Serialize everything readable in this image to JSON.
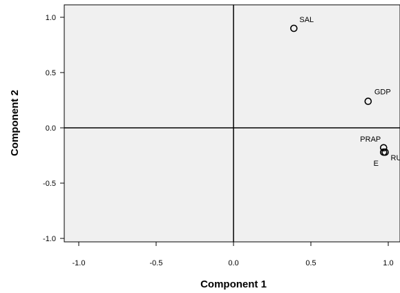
{
  "chart_data": {
    "type": "scatter",
    "title": "",
    "xlabel": "Component 1",
    "ylabel": "Component 2",
    "xlim": [
      -1.1,
      1.1
    ],
    "ylim": [
      -1.1,
      1.1
    ],
    "xticks": [
      -1.0,
      -0.5,
      0.0,
      0.5,
      1.0
    ],
    "xtick_labels": [
      "-1.0",
      "-0.5",
      "0.0",
      "0.5",
      "1.0"
    ],
    "yticks": [
      1.0,
      0.5,
      0.0,
      -0.5,
      -1.0
    ],
    "ytick_labels": [
      "1.0",
      "0.5",
      "0.0",
      "-0.5",
      "-1.0"
    ],
    "reference_lines": {
      "x": 0,
      "y": 0
    },
    "grid": false,
    "colors": {
      "plot_background": "#f0f0f0",
      "marker_stroke": "#000000",
      "axis": "#000000"
    },
    "points": [
      {
        "label": "SAL",
        "x": 0.39,
        "y": 0.9
      },
      {
        "label": "GDP",
        "x": 0.87,
        "y": 0.24
      },
      {
        "label": "PRAP",
        "x": 0.97,
        "y": -0.18
      },
      {
        "label": "RU",
        "x": 0.98,
        "y": -0.22
      },
      {
        "label": "E",
        "x": 0.97,
        "y": -0.22
      }
    ]
  }
}
